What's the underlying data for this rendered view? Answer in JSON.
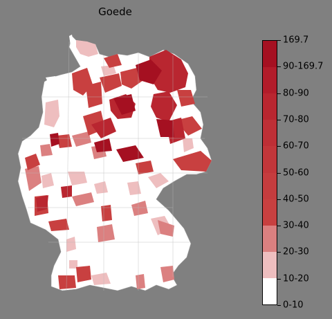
{
  "title": "Goede",
  "legend": {
    "labels": [
      "0-10",
      "10-20",
      "20-30",
      "30-40",
      "40-50",
      "50-60",
      "60-70",
      "70-80",
      "80-90",
      "90-169.7",
      "169.7"
    ],
    "colors": [
      "#ffffff",
      "#eebebf",
      "#db8080",
      "#c84040",
      "#c53c3e",
      "#c2363a",
      "#be2f36",
      "#b92630",
      "#b21c2a",
      "#a51021"
    ]
  },
  "map": {
    "region": "Germany",
    "fill_colors": [
      "#ffffff",
      "#eebebf",
      "#db8080",
      "#c84040",
      "#b92630",
      "#a51021"
    ]
  }
}
